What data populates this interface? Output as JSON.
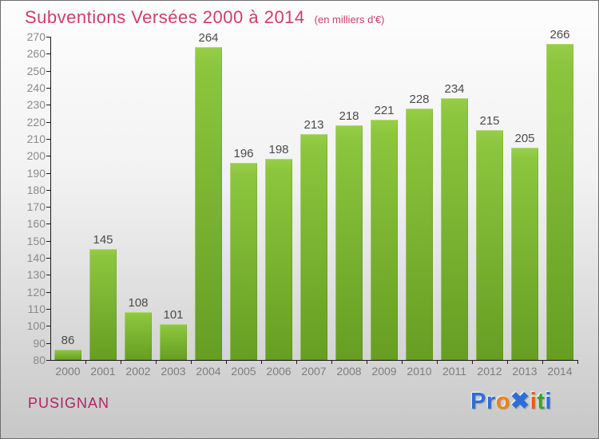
{
  "header": {
    "title": "Subventions Versées 2000 à 2014",
    "subtitle": "(en milliers d'€)"
  },
  "chart_data": {
    "type": "bar",
    "title": "Subventions Versées 2000 à 2014",
    "subtitle": "(en milliers d'€)",
    "categories": [
      "2000",
      "2001",
      "2002",
      "2003",
      "2004",
      "2005",
      "2006",
      "2007",
      "2008",
      "2009",
      "2010",
      "2011",
      "2012",
      "2013",
      "2014"
    ],
    "values": [
      86,
      145,
      108,
      101,
      264,
      196,
      198,
      213,
      218,
      221,
      228,
      234,
      215,
      205,
      266
    ],
    "xlabel": "",
    "ylabel": "",
    "ylim": [
      80,
      270
    ],
    "ytick_step": 10,
    "grid": false,
    "legend_position": "none",
    "bar_color_top": "#8cc63e",
    "bar_color_bottom": "#669e22",
    "value_label_color": "#4b4b4b",
    "axis_color": "#1a1a1a",
    "tick_label_color": "#8a8a8a"
  },
  "footer": {
    "municipality": "PUSIGNAN",
    "brand": {
      "name": "Proxiti",
      "letters": [
        {
          "char": "P",
          "color": "#2e6fd6"
        },
        {
          "char": "r",
          "color": "#2e6fd6"
        },
        {
          "char": "o",
          "color": "#f5820c"
        },
        {
          "char": "✖",
          "color": "#2e6fd6"
        },
        {
          "char": "i",
          "color": "#ee5a0b"
        },
        {
          "char": "t",
          "color": "#36a32d"
        },
        {
          "char": "i",
          "color": "#2e6fd6"
        }
      ]
    }
  },
  "colors": {
    "title_pink": "#ce3d6c",
    "municipality_pink": "#b02368",
    "background_top": "#fdfdfd",
    "background_bottom": "#c7c7c7"
  }
}
